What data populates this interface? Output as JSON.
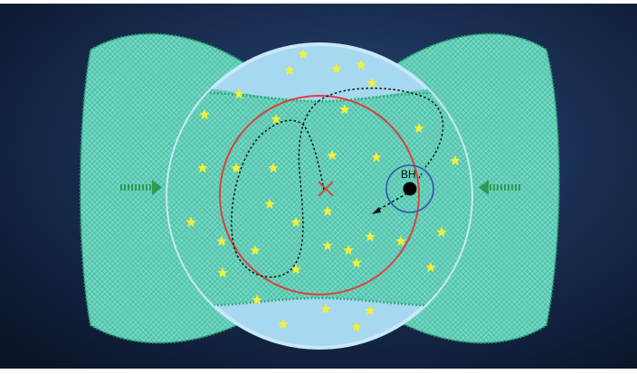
{
  "labels": {
    "black_hole": "BH"
  },
  "colors": {
    "background_dark": "#0d1a30",
    "background_light": "#1f3b63",
    "cloud_fill": "#6fd6c1",
    "cloud_edge": "#2a9d6e",
    "sphere_fill": "#a6d8ef",
    "sphere_edge": "#c9e8f7",
    "red_circle": "#d9413a",
    "blue_circle": "#3a4fb0",
    "star": "#f4ef3a",
    "center_cross": "#d9413a",
    "black_hole": "#000000",
    "orbit_path": "#111111",
    "arrow": "#2e9b57"
  },
  "icons": {
    "inflow_arrows": "dotted-right-and-left-arrows",
    "stars": "five-point-star",
    "center_marker": "x-cross"
  }
}
